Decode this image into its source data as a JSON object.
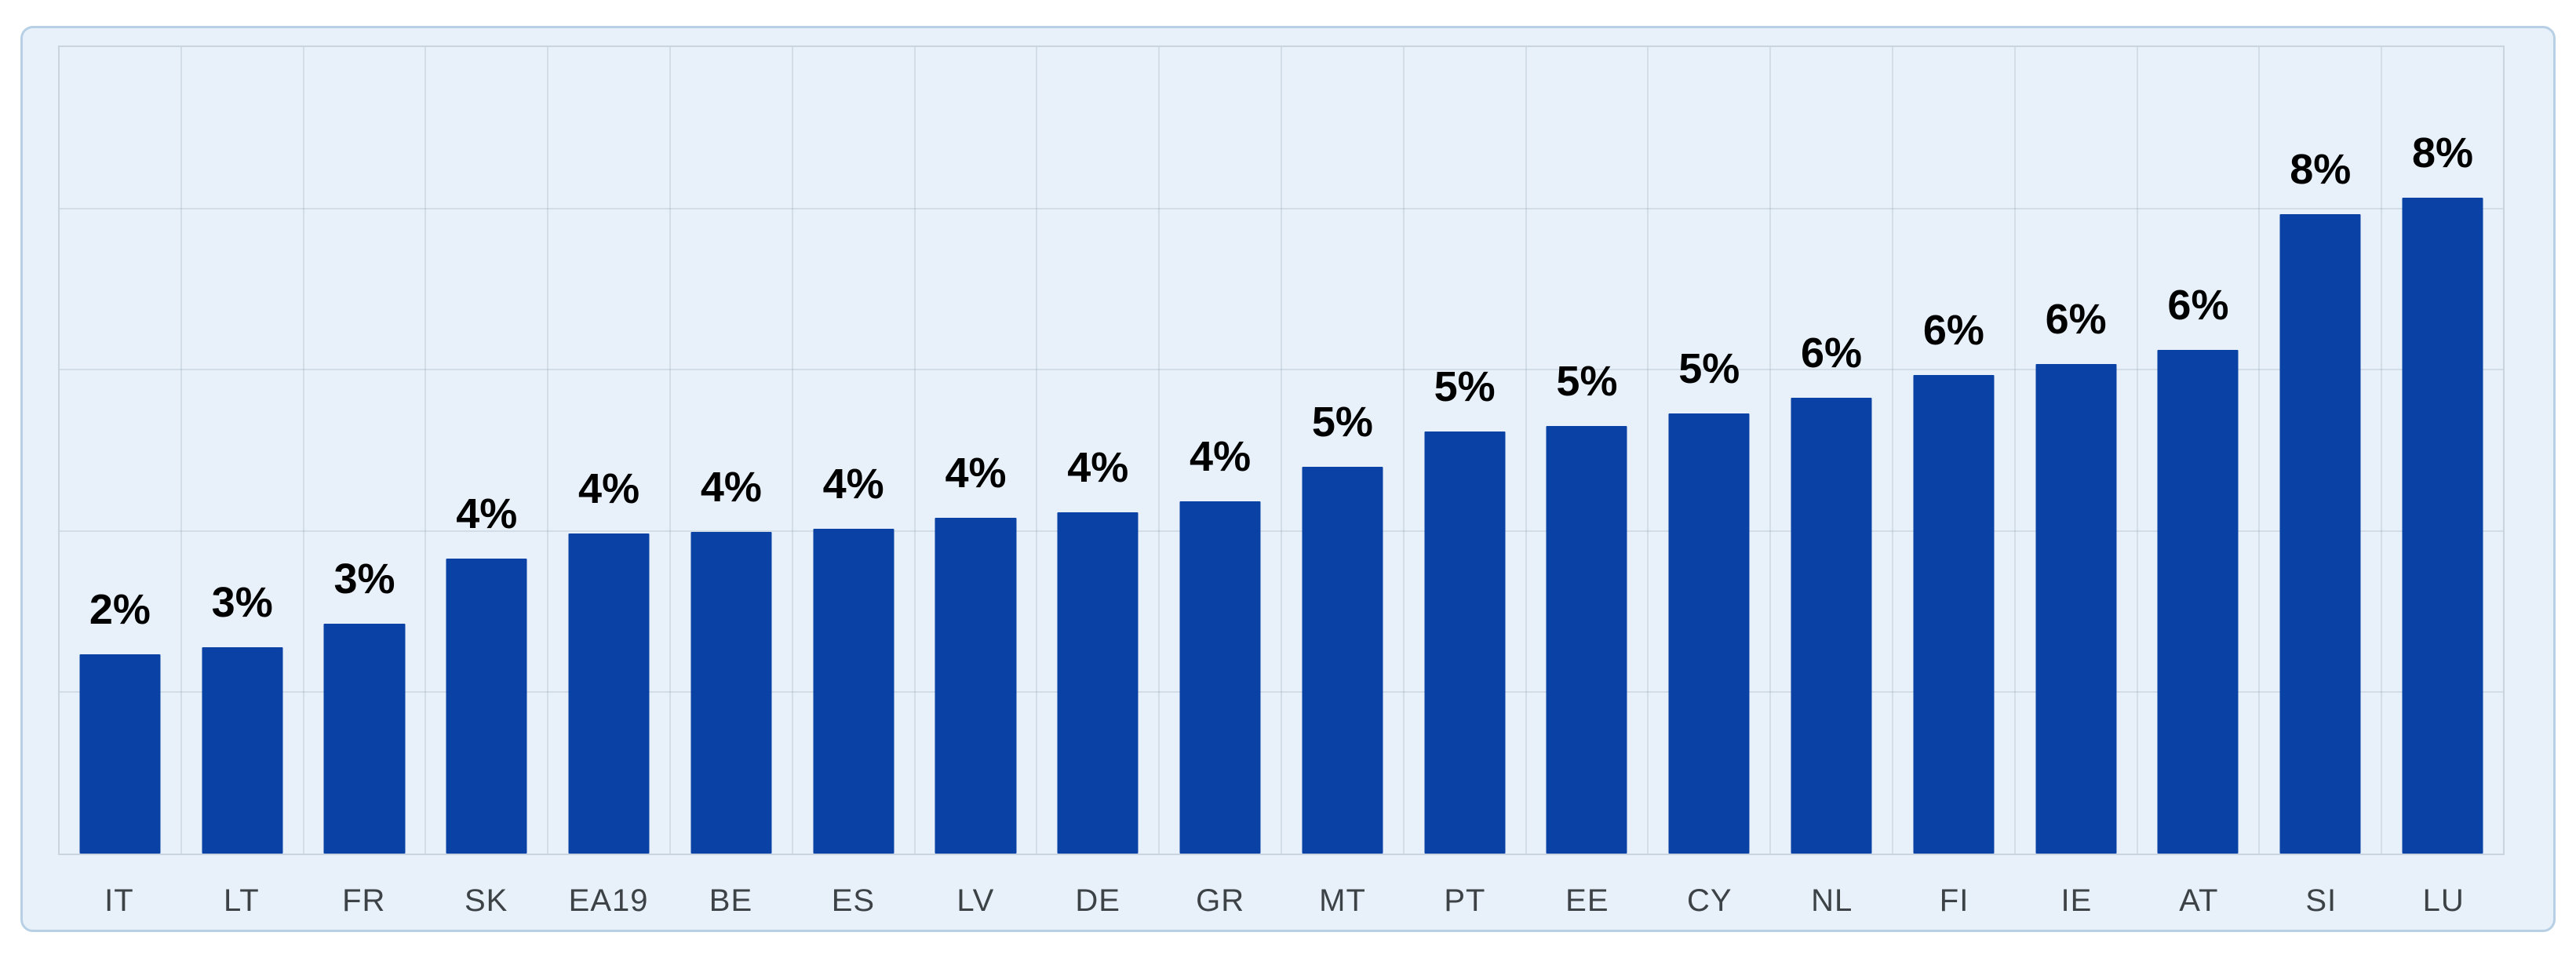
{
  "chart_data": {
    "type": "bar",
    "title": "",
    "xlabel": "",
    "ylabel": "",
    "categories": [
      "IT",
      "LT",
      "FR",
      "SK",
      "EA19",
      "BE",
      "ES",
      "LV",
      "DE",
      "GR",
      "MT",
      "PT",
      "EE",
      "CY",
      "NL",
      "FI",
      "IE",
      "AT",
      "SI",
      "LU"
    ],
    "values": [
      2.47,
      2.56,
      2.85,
      3.66,
      3.97,
      3.99,
      4.03,
      4.16,
      4.23,
      4.37,
      4.8,
      5.23,
      5.3,
      5.46,
      5.65,
      5.93,
      6.07,
      6.25,
      7.93,
      8.13
    ],
    "value_labels": [
      "2%",
      "3%",
      "3%",
      "4%",
      "4%",
      "4%",
      "4%",
      "4%",
      "4%",
      "4%",
      "5%",
      "5%",
      "5%",
      "5%",
      "6%",
      "6%",
      "6%",
      "6%",
      "8%",
      "8%"
    ],
    "ylim": [
      0,
      10
    ],
    "grid": true,
    "grid_step": 2,
    "y_tick_labels_shown": false,
    "legend_position": "none",
    "bar_color": "#0a41a5"
  },
  "colors": {
    "page_background": "#ffffff",
    "card_background": "#e8f1f9",
    "card_border": "#b8d0e6",
    "gridline": "#c9d3dd",
    "bar": "#0a41a5",
    "value_label_text": "#000000",
    "axis_label_text": "#3d4247"
  }
}
